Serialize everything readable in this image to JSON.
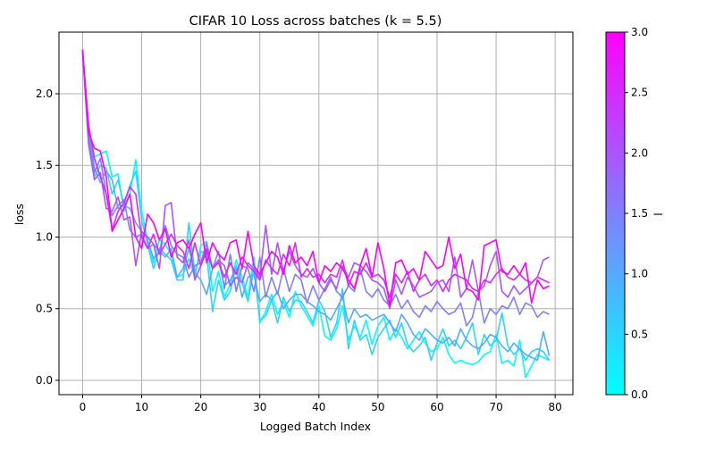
{
  "chart_data": {
    "type": "line",
    "title": "CIFAR 10 Loss across batches (k = 5.5)",
    "xlabel": "Logged Batch Index",
    "ylabel": "loss",
    "xlim": [
      -4,
      83
    ],
    "ylim": [
      -0.1,
      2.43
    ],
    "xticks": [
      0,
      10,
      20,
      30,
      40,
      50,
      60,
      70,
      80
    ],
    "yticks": [
      0.0,
      0.5,
      1.0,
      1.5,
      2.0
    ],
    "xtick_labels": [
      "0",
      "10",
      "20",
      "30",
      "40",
      "50",
      "60",
      "70",
      "80"
    ],
    "ytick_labels": [
      "0.0",
      "0.5",
      "1.0",
      "1.5",
      "2.0"
    ],
    "grid": true,
    "colormap": "cool",
    "colorbar": {
      "label": "l",
      "range": [
        0.0,
        3.0
      ],
      "ticks": [
        0.0,
        0.5,
        1.0,
        1.5,
        2.0,
        2.5,
        3.0
      ],
      "tick_labels": [
        "0.0",
        "0.5",
        "1.0",
        "1.5",
        "2.0",
        "2.5",
        "3.0"
      ],
      "color_low": "#00ffff",
      "color_high": "#ff00ff"
    },
    "series": [
      {
        "l": 0.0,
        "color": "#00ffff",
        "y": [
          2.3,
          1.72,
          1.56,
          1.58,
          1.6,
          1.42,
          1.44,
          1.18,
          1.3,
          1.54,
          1.18,
          0.98,
          0.82,
          0.98,
          0.95,
          0.88,
          0.72,
          0.74,
          0.85,
          0.72,
          0.94,
          0.97,
          0.62,
          0.76,
          0.58,
          0.67,
          0.84,
          0.72,
          0.58,
          0.86,
          0.4,
          0.48,
          0.6,
          0.46,
          0.55,
          0.44,
          0.62,
          0.52,
          0.45,
          0.38,
          0.52,
          0.31,
          0.28,
          0.36,
          0.52,
          0.28,
          0.38,
          0.3,
          0.42,
          0.25,
          0.38,
          0.44,
          0.28,
          0.36,
          0.3,
          0.22,
          0.28,
          0.34,
          0.26,
          0.2,
          0.22,
          0.3,
          0.18,
          0.12,
          0.14,
          0.12,
          0.11,
          0.13,
          0.18,
          0.2,
          0.32,
          0.12,
          0.14,
          0.1,
          0.28,
          0.02,
          0.1,
          0.18,
          0.16,
          0.14
        ]
      },
      {
        "l": 0.5,
        "color": "#2ad5ff",
        "y": [
          2.3,
          1.75,
          1.42,
          1.5,
          1.48,
          1.3,
          1.4,
          1.22,
          1.36,
          1.46,
          1.12,
          0.95,
          0.78,
          0.92,
          0.88,
          0.84,
          0.7,
          0.7,
          1.1,
          0.75,
          0.9,
          0.88,
          0.48,
          0.7,
          0.56,
          0.62,
          0.8,
          0.68,
          0.55,
          0.78,
          0.42,
          0.45,
          0.56,
          0.4,
          0.58,
          0.48,
          0.56,
          0.55,
          0.48,
          0.4,
          0.56,
          0.48,
          0.3,
          0.4,
          0.64,
          0.22,
          0.42,
          0.28,
          0.32,
          0.18,
          0.3,
          0.36,
          0.42,
          0.3,
          0.4,
          0.25,
          0.2,
          0.24,
          0.3,
          0.14,
          0.26,
          0.36,
          0.24,
          0.28,
          0.22,
          0.3,
          0.4,
          0.18,
          0.32,
          0.24,
          0.28,
          0.47,
          0.24,
          0.18,
          0.22,
          0.14,
          0.2,
          0.22,
          0.2,
          0.14
        ]
      },
      {
        "l": 1.0,
        "color": "#55aaff",
        "y": [
          2.3,
          1.8,
          1.48,
          1.38,
          1.46,
          1.4,
          1.2,
          1.22,
          1.2,
          1.1,
          1.04,
          0.98,
          0.85,
          0.9,
          0.86,
          0.92,
          0.72,
          0.78,
          0.92,
          0.75,
          0.7,
          0.6,
          0.78,
          0.84,
          0.66,
          0.7,
          0.78,
          0.58,
          0.72,
          0.74,
          0.55,
          0.6,
          0.56,
          0.62,
          0.5,
          0.56,
          0.6,
          0.6,
          0.55,
          0.52,
          0.48,
          0.46,
          0.42,
          0.5,
          0.58,
          0.4,
          0.5,
          0.44,
          0.46,
          0.42,
          0.44,
          0.46,
          0.4,
          0.34,
          0.46,
          0.4,
          0.32,
          0.28,
          0.36,
          0.32,
          0.28,
          0.26,
          0.3,
          0.24,
          0.36,
          0.28,
          0.24,
          0.22,
          0.26,
          0.32,
          0.3,
          0.24,
          0.2,
          0.26,
          0.22,
          0.18,
          0.16,
          0.14,
          0.34,
          0.17
        ]
      },
      {
        "l": 1.5,
        "color": "#807fff",
        "y": [
          2.28,
          1.7,
          1.45,
          1.55,
          1.3,
          1.15,
          1.22,
          1.26,
          1.05,
          1.0,
          1.02,
          0.92,
          0.95,
          0.9,
          1.08,
          0.94,
          0.88,
          0.86,
          0.72,
          0.8,
          0.82,
          0.96,
          0.78,
          0.9,
          0.64,
          0.88,
          0.62,
          0.8,
          0.78,
          0.62,
          0.86,
          0.58,
          0.72,
          0.6,
          0.78,
          0.62,
          0.74,
          0.7,
          0.54,
          0.66,
          0.56,
          0.64,
          0.72,
          0.62,
          0.58,
          0.66,
          0.62,
          0.78,
          0.62,
          0.58,
          0.64,
          0.56,
          0.52,
          0.6,
          0.5,
          0.56,
          0.48,
          0.44,
          0.52,
          0.48,
          0.55,
          0.5,
          0.46,
          0.48,
          0.54,
          0.38,
          0.44,
          0.62,
          0.4,
          0.5,
          0.46,
          0.52,
          0.5,
          0.58,
          0.46,
          0.54,
          0.52,
          0.44,
          0.48,
          0.46
        ]
      },
      {
        "l": 2.0,
        "color": "#aa55ff",
        "y": [
          2.3,
          1.65,
          1.4,
          1.45,
          1.2,
          1.18,
          1.28,
          1.12,
          1.14,
          0.8,
          1.04,
          1.0,
          0.95,
          0.78,
          1.22,
          1.24,
          0.86,
          0.82,
          0.98,
          0.7,
          0.8,
          0.9,
          0.78,
          0.84,
          0.8,
          0.66,
          0.72,
          0.68,
          0.82,
          0.78,
          0.72,
          1.08,
          0.74,
          0.96,
          0.76,
          0.9,
          0.8,
          0.74,
          0.72,
          0.78,
          0.68,
          0.62,
          0.7,
          0.64,
          0.8,
          0.72,
          0.82,
          0.8,
          0.76,
          0.7,
          0.68,
          0.64,
          0.5,
          0.7,
          0.6,
          0.72,
          0.66,
          0.58,
          0.6,
          0.62,
          0.68,
          0.7,
          0.62,
          0.86,
          0.58,
          0.64,
          0.84,
          0.62,
          0.66,
          0.8,
          0.9,
          0.62,
          0.58,
          0.66,
          0.6,
          0.64,
          0.68,
          0.72,
          0.84,
          0.86
        ]
      },
      {
        "l": 2.5,
        "color": "#d52aff",
        "y": [
          2.3,
          1.78,
          1.55,
          1.42,
          1.3,
          1.05,
          1.18,
          1.24,
          1.35,
          1.3,
          1.0,
          0.92,
          1.02,
          0.88,
          0.95,
          1.02,
          0.94,
          0.9,
          0.78,
          0.96,
          0.8,
          0.92,
          0.78,
          0.82,
          0.72,
          0.82,
          0.74,
          0.86,
          0.8,
          0.76,
          0.7,
          0.84,
          0.78,
          0.74,
          0.88,
          0.8,
          0.96,
          0.72,
          0.78,
          0.72,
          0.74,
          0.68,
          0.74,
          0.72,
          0.84,
          0.66,
          0.76,
          0.74,
          0.82,
          0.72,
          0.74,
          0.7,
          0.58,
          0.74,
          0.68,
          0.76,
          0.62,
          0.7,
          0.74,
          0.66,
          0.7,
          0.62,
          0.7,
          0.74,
          0.72,
          0.7,
          0.64,
          0.62,
          0.7,
          0.68,
          0.74,
          0.78,
          0.72,
          0.7,
          0.74,
          0.7,
          0.68,
          0.72,
          0.7,
          0.68
        ]
      },
      {
        "l": 3.0,
        "color": "#ff00ff",
        "y": [
          2.31,
          1.73,
          1.62,
          1.6,
          1.42,
          1.04,
          1.12,
          1.2,
          1.3,
          1.0,
          0.92,
          1.16,
          1.1,
          0.98,
          1.06,
          0.86,
          0.96,
          0.98,
          0.92,
          1.02,
          1.1,
          0.82,
          0.96,
          0.88,
          0.84,
          0.96,
          0.98,
          0.78,
          1.04,
          0.8,
          0.74,
          0.82,
          0.9,
          0.86,
          0.74,
          0.94,
          0.82,
          0.86,
          0.8,
          0.9,
          0.68,
          0.8,
          0.76,
          0.82,
          0.78,
          0.7,
          0.64,
          0.8,
          0.92,
          0.72,
          0.96,
          0.78,
          0.52,
          0.82,
          0.84,
          0.74,
          0.78,
          0.7,
          0.9,
          0.84,
          0.78,
          0.8,
          1.0,
          0.78,
          0.88,
          0.64,
          0.62,
          0.56,
          0.94,
          0.96,
          0.98,
          0.76,
          0.74,
          0.8,
          0.74,
          0.82,
          0.54,
          0.7,
          0.64,
          0.66
        ]
      }
    ]
  }
}
